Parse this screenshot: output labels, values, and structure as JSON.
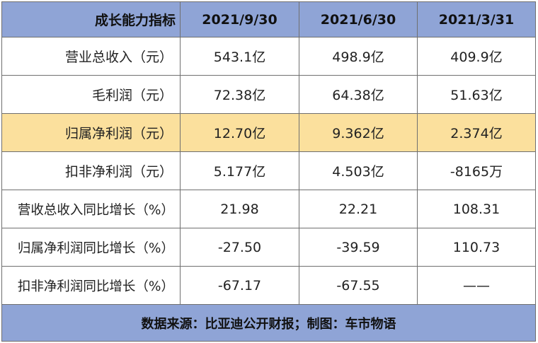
{
  "table": {
    "header": {
      "label": "成长能力指标",
      "dates": [
        "2021/9/30",
        "2021/6/30",
        "2021/3/31"
      ]
    },
    "rows": [
      {
        "label": "营业总收入（元）",
        "values": [
          "543.1亿",
          "498.9亿",
          "409.9亿"
        ]
      },
      {
        "label": "毛利润（元）",
        "values": [
          "72.38亿",
          "64.38亿",
          "51.63亿"
        ]
      },
      {
        "label": "归属净利润（元）",
        "values": [
          "12.70亿",
          "9.362亿",
          "2.374亿"
        ]
      },
      {
        "label": "扣非净利润（元）",
        "values": [
          "5.177亿",
          "4.503亿",
          "-8165万"
        ]
      },
      {
        "label": "营收总收入同比增长（%）",
        "values": [
          "21.98",
          "22.21",
          "108.31"
        ]
      },
      {
        "label": "归属净利润同比增长（%）",
        "values": [
          "-27.50",
          "-39.59",
          "110.73"
        ]
      },
      {
        "label": "扣非净利润同比增长（%）",
        "values": [
          "-67.17",
          "-67.55",
          "——"
        ]
      }
    ],
    "footer": "数据来源：比亚迪公开财报；制图：车市物语"
  },
  "colors": {
    "header_bg": "#8fa4d6",
    "highlight_bg": "#fbe09d",
    "border": "#6f6f6f"
  }
}
